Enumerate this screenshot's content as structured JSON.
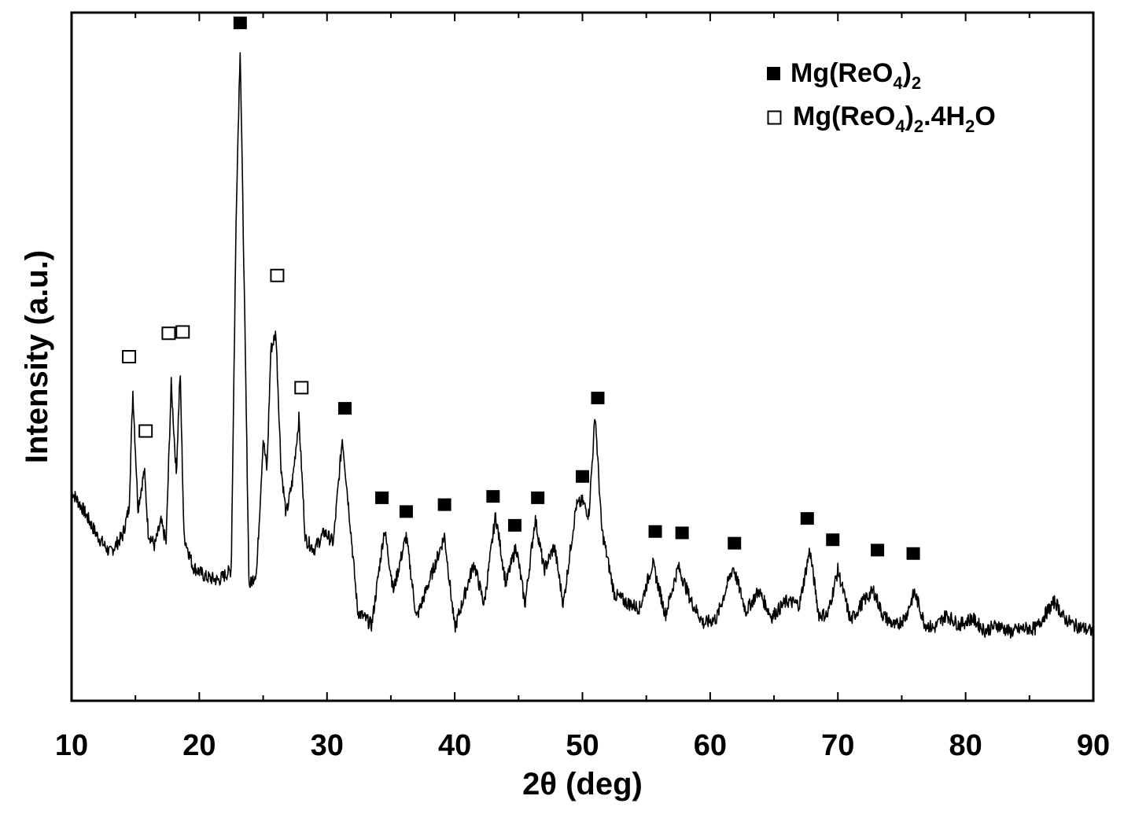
{
  "chart_data": {
    "type": "line",
    "title": "",
    "xlabel": "2θ (deg)",
    "ylabel": "Intensity (a.u.)",
    "xlim": [
      10,
      90
    ],
    "ylim": [
      0,
      100
    ],
    "x_ticks": [
      10,
      20,
      30,
      40,
      50,
      60,
      70,
      80,
      90
    ],
    "y_tick_labels": "none",
    "grid": false,
    "legend_position": "top-right",
    "line_color": "#000000",
    "legend": [
      {
        "marker": "filled-square",
        "base": "Mg(ReO",
        "sub1": "4",
        "mid": ")",
        "sub2": "2",
        "tail": "",
        "sub3": "",
        "end": ""
      },
      {
        "marker": "open-square",
        "base": "Mg(ReO",
        "sub1": "4",
        "mid": ")",
        "sub2": "2",
        "tail": ".4H",
        "sub3": "2",
        "end": "O"
      }
    ],
    "series": [
      {
        "name": "",
        "x": [
          10.0,
          11.0,
          12.0,
          13.0,
          14.0,
          14.5,
          14.8,
          15.2,
          15.7,
          16.0,
          16.5,
          17.0,
          17.4,
          17.8,
          18.2,
          18.5,
          18.8,
          19.5,
          20.5,
          21.5,
          22.5,
          22.9,
          23.2,
          23.5,
          23.9,
          24.5,
          25.0,
          25.3,
          25.6,
          26.0,
          26.4,
          26.8,
          27.3,
          27.8,
          28.3,
          29.0,
          29.8,
          30.5,
          31.2,
          31.8,
          32.4,
          33.5,
          34.5,
          35.2,
          36.2,
          37.0,
          38.5,
          39.2,
          40.0,
          41.5,
          42.3,
          43.2,
          44.0,
          44.8,
          45.5,
          46.3,
          47.0,
          47.8,
          48.5,
          49.5,
          50.0,
          50.5,
          51.0,
          51.5,
          52.5,
          53.5,
          54.5,
          55.5,
          56.5,
          57.5,
          58.5,
          59.5,
          60.5,
          61.8,
          62.8,
          63.8,
          64.8,
          66.0,
          67.0,
          67.8,
          68.5,
          69.2,
          70.0,
          71.0,
          72.0,
          72.8,
          73.5,
          74.5,
          75.3,
          76.0,
          76.8,
          77.5,
          78.5,
          79.5,
          80.5,
          81.5,
          82.5,
          83.5,
          84.5,
          85.5,
          86.2,
          87.0,
          87.7,
          88.5,
          89.3,
          90.0
        ],
        "y": [
          30.5,
          27.5,
          24,
          21.5,
          24,
          28,
          45,
          28,
          33.5,
          24.5,
          22.5,
          26,
          23,
          46,
          33,
          48,
          24,
          19.5,
          18,
          17.5,
          19,
          72,
          95,
          62,
          16.5,
          19,
          38,
          33.5,
          51,
          53.5,
          34,
          27,
          32,
          41,
          23.5,
          22,
          24.5,
          23,
          38.2,
          26,
          13,
          11,
          25,
          16,
          24,
          12,
          20,
          24,
          10.5,
          20,
          14,
          27,
          17,
          22.5,
          14,
          26.5,
          19,
          22.5,
          14,
          28.3,
          29,
          27,
          41.7,
          25,
          15.5,
          14.2,
          13.5,
          20,
          12.5,
          19.5,
          14.5,
          11.2,
          12,
          19.5,
          13,
          16,
          12.2,
          14.5,
          14,
          22,
          12.5,
          12.5,
          19,
          11.6,
          14.5,
          16,
          12.5,
          10.8,
          12.2,
          15.8,
          11.2,
          10.5,
          12.5,
          11,
          12,
          10.2,
          11,
          10,
          10.5,
          10.5,
          12.5,
          14.5,
          12,
          11,
          10.5,
          10
        ]
      }
    ],
    "markers": [
      {
        "type": "filled",
        "x": 23.2,
        "y": 98.5
      },
      {
        "type": "filled",
        "x": 31.4,
        "y": 42.5
      },
      {
        "type": "filled",
        "x": 34.3,
        "y": 29.5
      },
      {
        "type": "filled",
        "x": 36.2,
        "y": 27.5
      },
      {
        "type": "filled",
        "x": 39.2,
        "y": 28.5
      },
      {
        "type": "filled",
        "x": 43.0,
        "y": 29.7
      },
      {
        "type": "filled",
        "x": 44.7,
        "y": 25.5
      },
      {
        "type": "filled",
        "x": 46.5,
        "y": 29.5
      },
      {
        "type": "filled",
        "x": 50.0,
        "y": 32.6
      },
      {
        "type": "filled",
        "x": 51.2,
        "y": 44.0
      },
      {
        "type": "filled",
        "x": 55.7,
        "y": 24.6
      },
      {
        "type": "filled",
        "x": 57.8,
        "y": 24.4
      },
      {
        "type": "filled",
        "x": 61.9,
        "y": 22.9
      },
      {
        "type": "filled",
        "x": 67.6,
        "y": 26.5
      },
      {
        "type": "filled",
        "x": 69.6,
        "y": 23.4
      },
      {
        "type": "filled",
        "x": 73.1,
        "y": 21.9
      },
      {
        "type": "filled",
        "x": 75.9,
        "y": 21.4
      },
      {
        "type": "open",
        "x": 14.5,
        "y": 50.0
      },
      {
        "type": "open",
        "x": 15.8,
        "y": 39.2
      },
      {
        "type": "open",
        "x": 17.6,
        "y": 53.4
      },
      {
        "type": "open",
        "x": 18.7,
        "y": 53.6
      },
      {
        "type": "open",
        "x": 26.1,
        "y": 61.8
      },
      {
        "type": "open",
        "x": 28.0,
        "y": 45.5
      }
    ]
  }
}
